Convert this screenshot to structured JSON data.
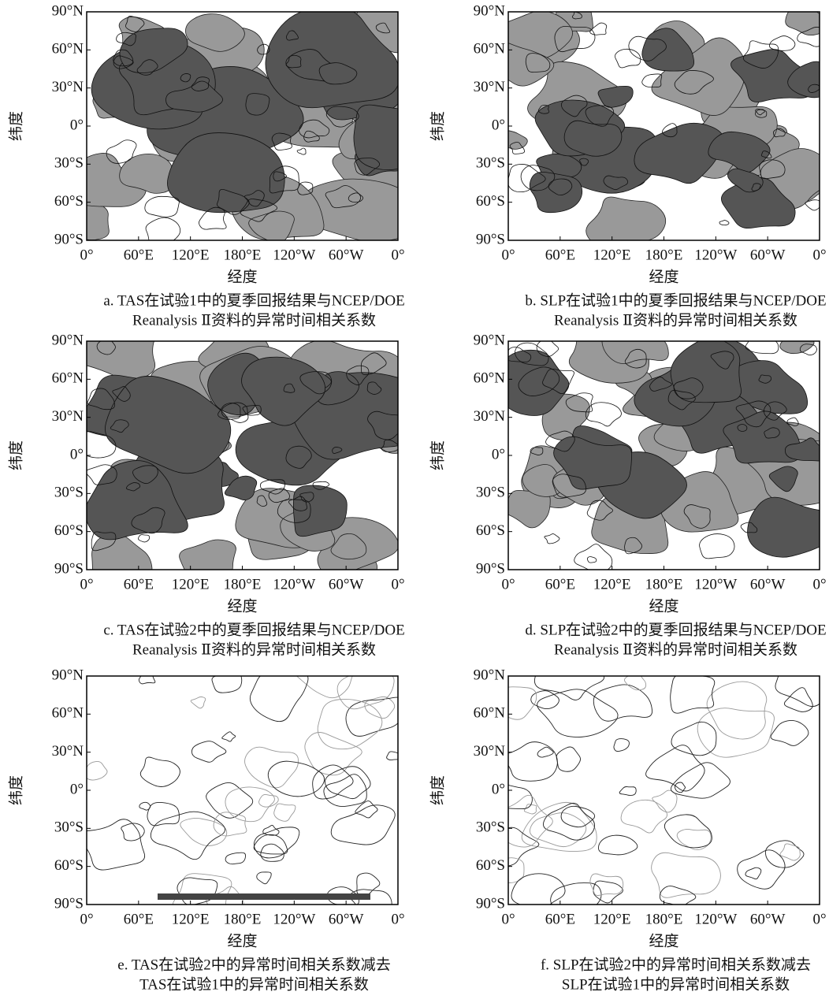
{
  "panels": [
    {
      "y_label": "纬度",
      "x_label": "经度",
      "y_ticks": [
        "90°N",
        "60°N",
        "30°N",
        "0°",
        "30°S",
        "60°S",
        "90°S"
      ],
      "x_ticks": [
        "0°",
        "60°E",
        "120°E",
        "180°E",
        "120°W",
        "60°W",
        "0°"
      ],
      "caption": [
        "a. TAS在试验1中的夏季回报结果与NCEP/DOE",
        "Reanalysis Ⅱ资料的异常时间相关系数"
      ]
    },
    {
      "y_label": "纬度",
      "x_label": "经度",
      "y_ticks": [
        "90°N",
        "60°N",
        "30°N",
        "0°",
        "30°S",
        "60°S",
        "90°S"
      ],
      "x_ticks": [
        "0°",
        "60°E",
        "120°E",
        "180°E",
        "120°W",
        "60°W",
        "0°"
      ],
      "caption": [
        "b. SLP在试验1中的夏季回报结果与NCEP/DOE",
        "Reanalysis Ⅱ资料的异常时间相关系数"
      ]
    },
    {
      "y_label": "纬度",
      "x_label": "经度",
      "y_ticks": [
        "90°N",
        "60°N",
        "30°N",
        "0°",
        "30°S",
        "60°S",
        "90°S"
      ],
      "x_ticks": [
        "0°",
        "60°E",
        "120°E",
        "180°E",
        "120°W",
        "60°W",
        "0°"
      ],
      "caption": [
        "c. TAS在试验2中的夏季回报结果与NCEP/DOE",
        "Reanalysis Ⅱ资料的异常时间相关系数"
      ]
    },
    {
      "y_label": "纬度",
      "x_label": "经度",
      "y_ticks": [
        "90°N",
        "60°N",
        "30°N",
        "0°",
        "30°S",
        "60°S",
        "90°S"
      ],
      "x_ticks": [
        "0°",
        "60°E",
        "120°E",
        "180°E",
        "120°W",
        "60°W",
        "0°"
      ],
      "caption": [
        "d. SLP在试验2中的夏季回报结果与NCEP/DOE",
        "Reanalysis Ⅱ资料的异常时间相关系数"
      ]
    },
    {
      "y_label": "纬度",
      "x_label": "经度",
      "y_ticks": [
        "90°N",
        "60°N",
        "30°N",
        "0°",
        "30°S",
        "60°S",
        "90°S"
      ],
      "x_ticks": [
        "0°",
        "60°E",
        "120°E",
        "180°E",
        "120°W",
        "60°W",
        "0°"
      ],
      "caption": [
        "e. TAS在试验2中的异常时间相关系数减去",
        "TAS在试验1中的异常时间相关系数"
      ]
    },
    {
      "y_label": "纬度",
      "x_label": "经度",
      "y_ticks": [
        "90°N",
        "60°N",
        "30°N",
        "0°",
        "30°S",
        "60°S",
        "90°S"
      ],
      "x_ticks": [
        "0°",
        "60°E",
        "120°E",
        "180°E",
        "120°W",
        "60°W",
        "0°"
      ],
      "caption": [
        "f. SLP在试验2中的异常时间相关系数减去",
        "SLP在试验1中的异常时间相关系数"
      ]
    }
  ]
}
